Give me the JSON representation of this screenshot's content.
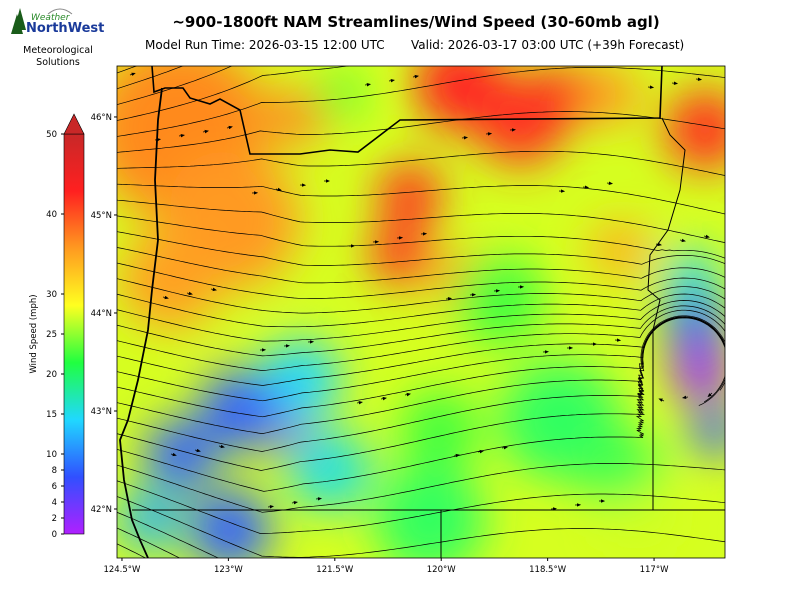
{
  "logo": {
    "line1": "Weather",
    "line2": "NorthWest",
    "tagline": [
      "Meteorological",
      "Solutions"
    ]
  },
  "map": {
    "title": "~900-1800ft NAM Streamlines/Wind Speed (30-60mb agl)",
    "run_time": "Model Run Time: 2026-03-15 12:00 UTC",
    "valid": "Valid: 2026-03-17 03:00 UTC  (+39h Forecast)",
    "xlim": [
      -124.57,
      -116.0
    ],
    "ylim": [
      41.5,
      46.52
    ],
    "xticks": [
      {
        "value": -124.5,
        "label": "124.5°W"
      },
      {
        "value": -123,
        "label": "123°W"
      },
      {
        "value": -121.5,
        "label": "121.5°W"
      },
      {
        "value": -120,
        "label": "120°W"
      },
      {
        "value": -118.5,
        "label": "118.5°W"
      },
      {
        "value": -117,
        "label": "117°W"
      }
    ],
    "yticks": [
      {
        "value": 46,
        "label": "46°N"
      },
      {
        "value": 45,
        "label": "45°N"
      },
      {
        "value": 44,
        "label": "44°N"
      },
      {
        "value": 43,
        "label": "43°N"
      },
      {
        "value": 42,
        "label": "42°N"
      }
    ]
  },
  "colorbar": {
    "label": "Wind Speed (mph)",
    "lim": [
      0,
      50
    ],
    "ticks": [
      0,
      2,
      4,
      6,
      8,
      10,
      15,
      20,
      25,
      30,
      40,
      50
    ],
    "colors": [
      "#b020ff",
      "#3050ff",
      "#20d8ff",
      "#20ff40",
      "#ffff20",
      "#ff9a20",
      "#ff2020",
      "#c82828"
    ]
  }
}
